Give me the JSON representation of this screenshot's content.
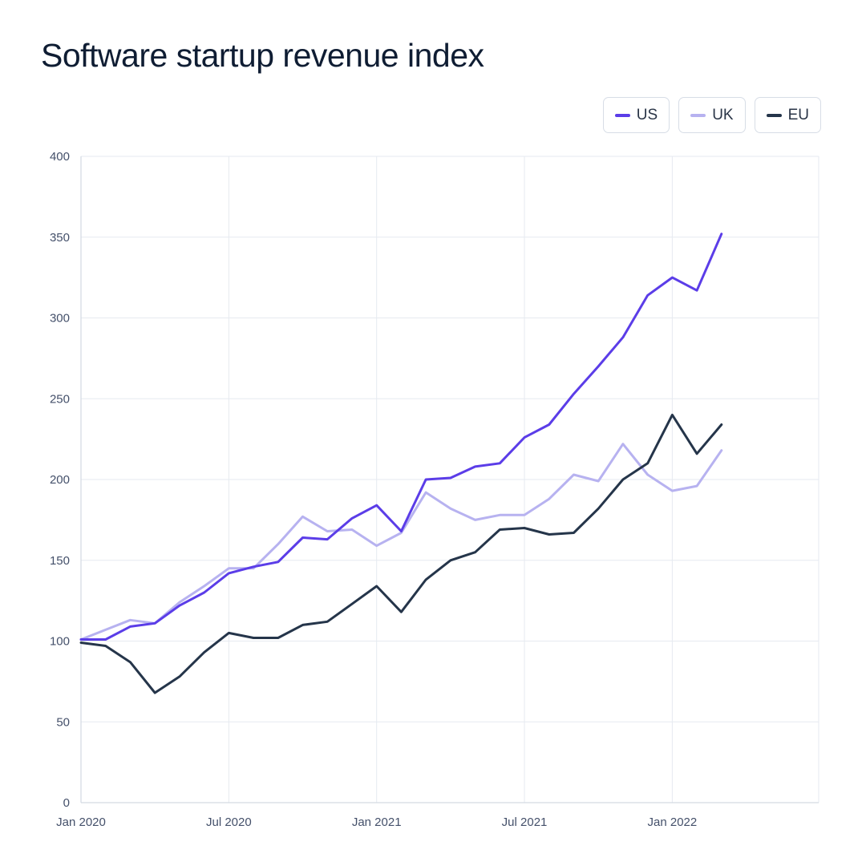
{
  "title": "Software startup revenue index",
  "legend": [
    {
      "name": "US",
      "color": "#5b3de8"
    },
    {
      "name": "UK",
      "color": "#b7b2f0"
    },
    {
      "name": "EU",
      "color": "#25354a"
    }
  ],
  "chart_data": {
    "type": "line",
    "title": "Software startup revenue index",
    "xlabel": "",
    "ylabel": "",
    "ylim": [
      0,
      400
    ],
    "yticks": [
      0,
      50,
      100,
      150,
      200,
      250,
      300,
      350,
      400
    ],
    "xtick_labels": [
      "Jan 2020",
      "Jul 2020",
      "Jan 2021",
      "Jul 2021",
      "Jan 2022"
    ],
    "xtick_dates": [
      "2020-01",
      "2020-07",
      "2021-01",
      "2021-07",
      "2022-01"
    ],
    "grid": true,
    "legend_placement": "top-right",
    "x": [
      "2020-01",
      "2020-02",
      "2020-03",
      "2020-04",
      "2020-05",
      "2020-06",
      "2020-07",
      "2020-08",
      "2020-09",
      "2020-10",
      "2020-11",
      "2020-12",
      "2021-01",
      "2021-02",
      "2021-03",
      "2021-04",
      "2021-05",
      "2021-06",
      "2021-07",
      "2021-08",
      "2021-09",
      "2021-10",
      "2021-11",
      "2021-12",
      "2022-01",
      "2022-02",
      "2022-03"
    ],
    "series": [
      {
        "name": "US",
        "color": "#5b3de8",
        "values": [
          101,
          101,
          109,
          111,
          122,
          130,
          142,
          146,
          149,
          164,
          163,
          176,
          184,
          168,
          200,
          201,
          208,
          210,
          226,
          234,
          253,
          270,
          288,
          314,
          325,
          317,
          352
        ]
      },
      {
        "name": "UK",
        "color": "#b7b2f0",
        "values": [
          101,
          107,
          113,
          111,
          124,
          134,
          145,
          145,
          160,
          177,
          168,
          169,
          159,
          167,
          192,
          182,
          175,
          178,
          178,
          188,
          203,
          199,
          222,
          203,
          193,
          196,
          218
        ]
      },
      {
        "name": "EU",
        "color": "#25354a",
        "values": [
          99,
          97,
          87,
          68,
          78,
          93,
          105,
          102,
          102,
          110,
          112,
          123,
          134,
          118,
          138,
          150,
          155,
          169,
          170,
          166,
          167,
          182,
          200,
          210,
          240,
          216,
          234
        ]
      }
    ]
  }
}
